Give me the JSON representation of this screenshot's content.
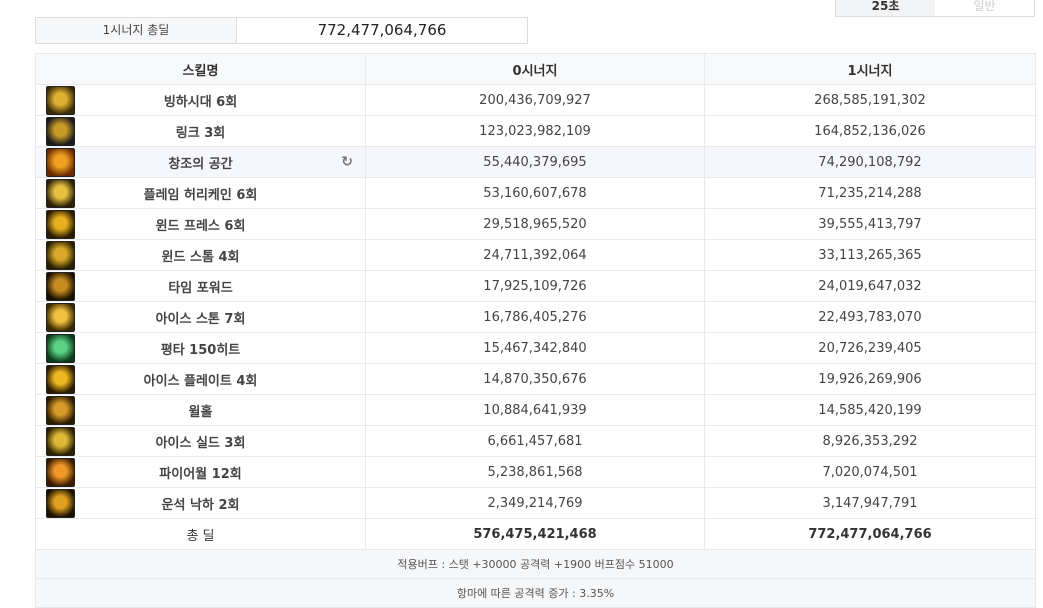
{
  "tabs": [
    {
      "label": "25초",
      "active": true
    },
    {
      "label": "일반",
      "active": false
    }
  ],
  "summary": {
    "label": "1시너지 총딜",
    "value": "772,477,064,766"
  },
  "table": {
    "headers": [
      "스킬명",
      "0시너지",
      "1시너지"
    ],
    "rows": [
      {
        "name": "빙하시대 6회",
        "s0": "200,436,709,927",
        "s1": "268,585,191,302",
        "icon": "skill-glacier-icon"
      },
      {
        "name": "링크 3회",
        "s0": "123,023,982,109",
        "s1": "164,852,136,026",
        "icon": "skill-link-icon"
      },
      {
        "name": "창조의 공간",
        "s0": "55,440,379,695",
        "s1": "74,290,108,792",
        "icon": "skill-creation-icon",
        "refresh": true
      },
      {
        "name": "플레임 허리케인 6회",
        "s0": "53,160,607,678",
        "s1": "71,235,214,288",
        "icon": "skill-flame-hurricane-icon"
      },
      {
        "name": "윈드 프레스 6회",
        "s0": "29,518,965,520",
        "s1": "39,555,413,797",
        "icon": "skill-wind-press-icon"
      },
      {
        "name": "윈드 스톰 4회",
        "s0": "24,711,392,064",
        "s1": "33,113,265,365",
        "icon": "skill-wind-storm-icon"
      },
      {
        "name": "타임 포워드",
        "s0": "17,925,109,726",
        "s1": "24,019,647,032",
        "icon": "skill-time-forward-icon"
      },
      {
        "name": "아이스 스톤 7회",
        "s0": "16,786,405,276",
        "s1": "22,493,783,070",
        "icon": "skill-ice-stone-icon"
      },
      {
        "name": "평타 150히트",
        "s0": "15,467,342,840",
        "s1": "20,726,239,405",
        "icon": "skill-basic-attack-icon"
      },
      {
        "name": "아이스 플레이트 4회",
        "s0": "14,870,350,676",
        "s1": "19,926,269,906",
        "icon": "skill-ice-plate-icon"
      },
      {
        "name": "윌홀",
        "s0": "10,884,641,939",
        "s1": "14,585,420,199",
        "icon": "skill-wormhole-icon"
      },
      {
        "name": "아이스 실드 3회",
        "s0": "6,661,457,681",
        "s1": "8,926,353,292",
        "icon": "skill-ice-shield-icon"
      },
      {
        "name": "파이어월 12회",
        "s0": "5,238,861,568",
        "s1": "7,020,074,501",
        "icon": "skill-firewall-icon"
      },
      {
        "name": "운석 낙하 2회",
        "s0": "2,349,214,769",
        "s1": "3,147,947,791",
        "icon": "skill-meteor-icon"
      }
    ],
    "total": {
      "label": "총 딜",
      "s0": "576,475,421,468",
      "s1": "772,477,064,766"
    },
    "notes": [
      "적용버프 : 스탯 +30000 공격력 +1900 버프점수 51000",
      "항마에 따른 공격력 증가 : 3.35%"
    ]
  }
}
